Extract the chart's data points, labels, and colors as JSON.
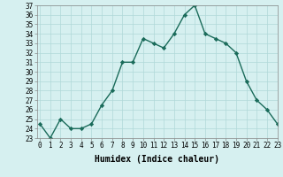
{
  "x": [
    0,
    1,
    2,
    3,
    4,
    5,
    6,
    7,
    8,
    9,
    10,
    11,
    12,
    13,
    14,
    15,
    16,
    17,
    18,
    19,
    20,
    21,
    22,
    23
  ],
  "y": [
    24.5,
    23,
    25,
    24,
    24,
    24.5,
    26.5,
    28,
    31,
    31,
    33.5,
    33,
    32.5,
    34,
    36,
    37,
    34,
    33.5,
    33,
    32,
    29,
    27,
    26,
    24.5
  ],
  "line_color": "#1a6b5a",
  "marker": "D",
  "marker_size": 2.2,
  "line_width": 1.0,
  "bg_color": "#d6f0f0",
  "grid_color": "#b0d8d8",
  "xlabel": "Humidex (Indice chaleur)",
  "ylim": [
    23,
    37
  ],
  "xlim": [
    -0.3,
    23
  ],
  "yticks": [
    23,
    24,
    25,
    26,
    27,
    28,
    29,
    30,
    31,
    32,
    33,
    34,
    35,
    36,
    37
  ],
  "xticks": [
    0,
    1,
    2,
    3,
    4,
    5,
    6,
    7,
    8,
    9,
    10,
    11,
    12,
    13,
    14,
    15,
    16,
    17,
    18,
    19,
    20,
    21,
    22,
    23
  ],
  "tick_fontsize": 5.5,
  "xlabel_fontsize": 7,
  "xlabel_fontweight": "bold"
}
